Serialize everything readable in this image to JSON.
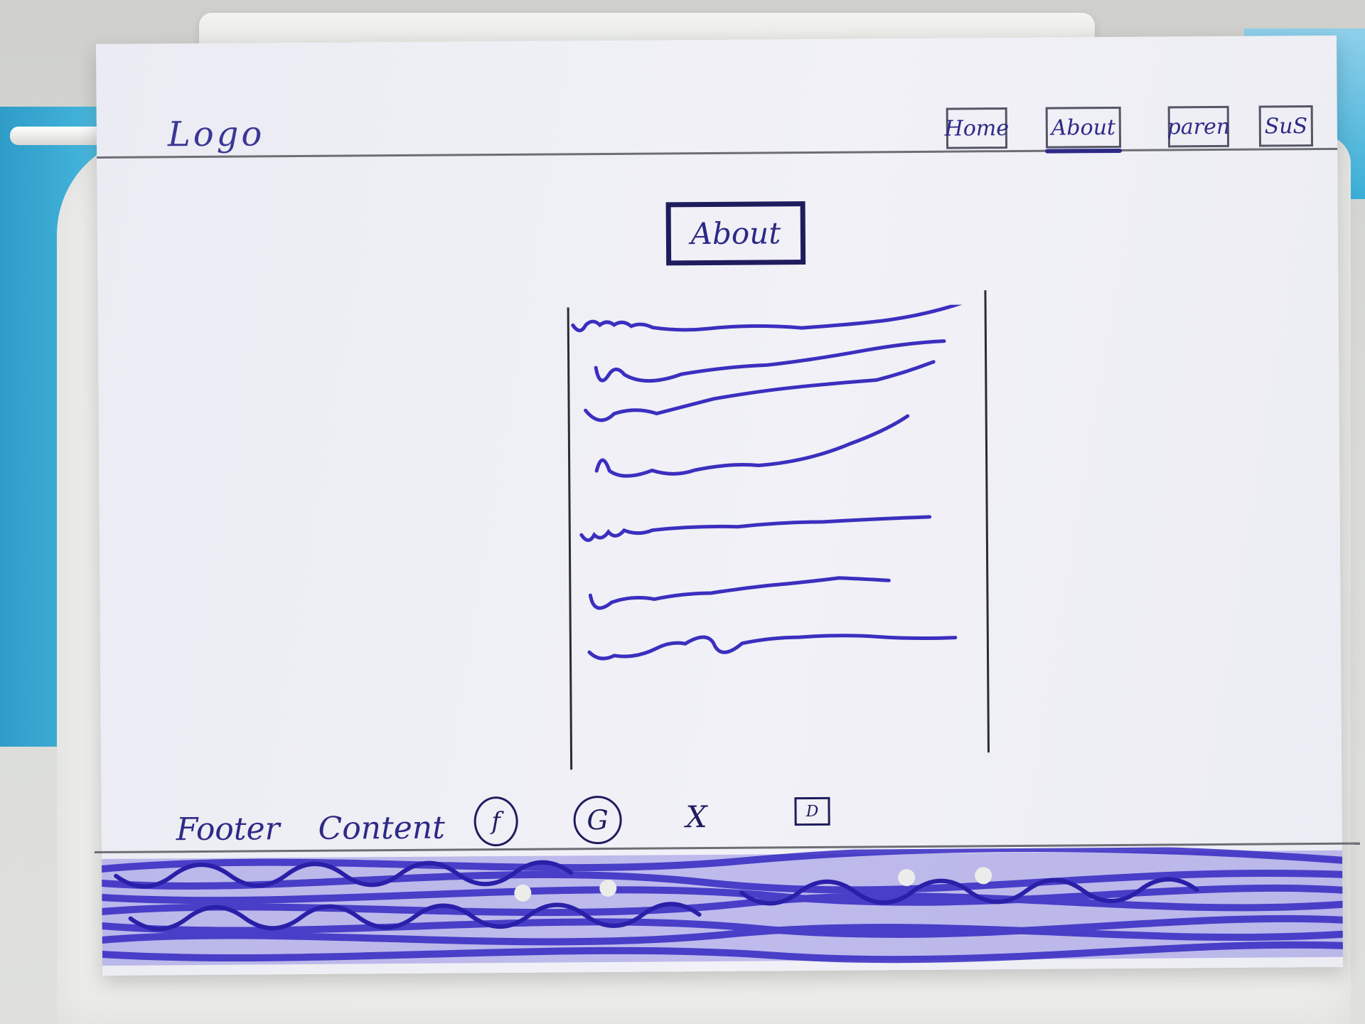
{
  "logo": {
    "text": "Logo"
  },
  "nav": {
    "items": [
      {
        "label": "Home",
        "active": false
      },
      {
        "label": "About",
        "active": true
      },
      {
        "label": "paren",
        "active": false
      },
      {
        "label": "SuS",
        "active": false
      }
    ]
  },
  "main": {
    "heading": "About",
    "text_line_count": 7
  },
  "footer": {
    "text": "Footer Content",
    "social_icons": [
      {
        "name": "facebook-icon",
        "glyph": "f"
      },
      {
        "name": "google-icon",
        "glyph": "G"
      },
      {
        "name": "x-icon",
        "glyph": "X"
      },
      {
        "name": "square-icon",
        "glyph": "D"
      }
    ]
  },
  "colors": {
    "ink": "#2d2a86",
    "footer_fill": "#3a2fc4",
    "paper": "#efeff5"
  }
}
